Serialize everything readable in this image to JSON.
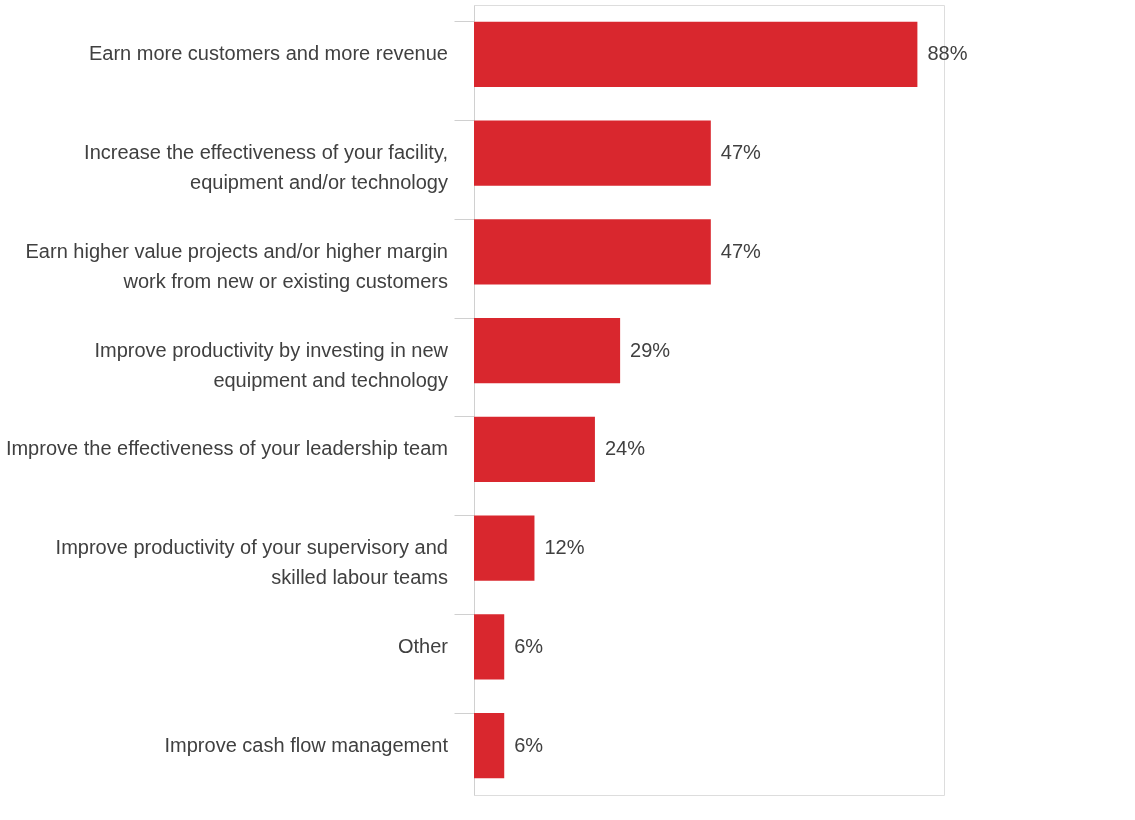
{
  "chart_data": {
    "type": "bar",
    "orientation": "horizontal",
    "categories": [
      "Earn more customers and more revenue",
      "Increase the effectiveness of your facility, equipment and/or technology",
      "Earn higher value projects and/or higher margin work from new or existing customers",
      "Improve productivity by investing in new equipment and technology",
      "Improve the effectiveness of your leadership team",
      "Improve productivity of your supervisory and skilled labour teams",
      "Other",
      "Improve cash flow management"
    ],
    "values": [
      88,
      47,
      47,
      29,
      24,
      12,
      6,
      6
    ],
    "value_labels": [
      "88%",
      "47%",
      "47%",
      "29%",
      "24%",
      "12%",
      "6%",
      "6%"
    ],
    "color": "#d9272e"
  }
}
